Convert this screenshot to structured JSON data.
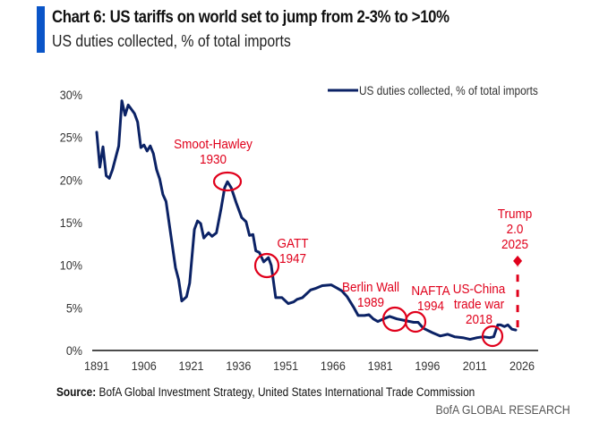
{
  "header": {
    "title": "Chart 6: US tariffs on world set to jump from 2-3% to >10%",
    "subtitle": "US duties collected, % of total imports"
  },
  "footer": {
    "source_label": "Source:",
    "source_text": " BofA Global Investment Strategy, United States International Trade Commission",
    "brand": "BofA GLOBAL RESEARCH"
  },
  "colors": {
    "accent": "#0a55c8",
    "series": "#0b2265",
    "annotation": "#e0001b",
    "axis": "#111111"
  },
  "chart_data": {
    "type": "line",
    "title": "Chart 6: US tariffs on world set to jump from 2-3% to >10%",
    "subtitle": "US duties collected, % of total imports",
    "xlabel": "",
    "ylabel": "",
    "xlim": [
      1891,
      2026
    ],
    "ylim": [
      0,
      30
    ],
    "x_ticks": [
      1891,
      1906,
      1921,
      1936,
      1951,
      1966,
      1981,
      1996,
      2011,
      2026
    ],
    "y_ticks": [
      0,
      5,
      10,
      15,
      20,
      25,
      30
    ],
    "y_tick_labels": [
      "0%",
      "5%",
      "10%",
      "15%",
      "20%",
      "25%",
      "30%"
    ],
    "grid": false,
    "legend": {
      "position": "top-right",
      "entries": [
        "US duties collected, % of total imports"
      ]
    },
    "series": [
      {
        "name": "US duties collected, % of total imports",
        "x": [
          1891,
          1892,
          1893,
          1894,
          1895,
          1896,
          1898,
          1899,
          1900,
          1901,
          1903,
          1904,
          1905,
          1906,
          1907,
          1908,
          1909,
          1910,
          1911,
          1912,
          1913,
          1916,
          1917,
          1918,
          1919.5,
          1920.5,
          1922,
          1923,
          1924,
          1925,
          1926.5,
          1927.6,
          1929,
          1930.5,
          1931.6,
          1932.5,
          1933.7,
          1935.3,
          1937,
          1938.4,
          1939.5,
          1940.6,
          1941.5,
          1942.6,
          1944,
          1945.5,
          1946.4,
          1947.8,
          1949.8,
          1951.8,
          1953.5,
          1954.6,
          1956.3,
          1958.9,
          1960.6,
          1962.6,
          1965.4,
          1967.4,
          1968.8,
          1970.5,
          1972.5,
          1974,
          1976,
          1977.4,
          1978.8,
          1980.2,
          1982,
          1984,
          1986.3,
          1989,
          1991.6,
          1993,
          1994.7,
          1997.5,
          2000,
          2002.4,
          2004.6,
          2007.2,
          2009.5,
          2011.7,
          2013.7,
          2015.7,
          2017,
          2018.3,
          2019.2,
          2020.4,
          2021.5,
          2022.8,
          2024
        ],
        "values": [
          25.6,
          21.5,
          23.9,
          20.5,
          20.2,
          21.2,
          24.0,
          29.3,
          27.6,
          28.8,
          27.8,
          26.8,
          23.8,
          24.1,
          23.4,
          24.0,
          23.1,
          21.2,
          20.1,
          18.3,
          17.5,
          9.7,
          8.3,
          5.8,
          6.3,
          7.9,
          14.2,
          15.2,
          14.9,
          13.2,
          13.8,
          13.4,
          13.8,
          16.7,
          19.1,
          19.8,
          19.1,
          17.3,
          15.6,
          15.1,
          13.5,
          13.6,
          11.7,
          11.5,
          10.4,
          10.9,
          10.0,
          6.2,
          6.2,
          5.5,
          5.7,
          6.0,
          6.2,
          7.1,
          7.3,
          7.6,
          7.7,
          7.3,
          7.0,
          6.3,
          5.1,
          4.1,
          4.1,
          4.2,
          3.7,
          3.4,
          3.7,
          4.0,
          3.7,
          3.5,
          3.3,
          3.3,
          2.6,
          2.1,
          1.7,
          1.9,
          1.6,
          1.5,
          1.3,
          1.5,
          1.6,
          1.5,
          1.6,
          3.0,
          3.0,
          2.8,
          3.0,
          2.5,
          2.4
        ]
      }
    ],
    "projection": {
      "from_x": 2024.6,
      "from_value": 2.4,
      "to_value": 10.5,
      "style": "dashed",
      "marker": "diamond"
    },
    "annotations": [
      {
        "label_lines": [
          "Smoot-Hawley",
          "1930"
        ],
        "x": 1932.5,
        "y": 19.8
      },
      {
        "label_lines": [
          "GATT",
          "1947"
        ],
        "x": 1946.4,
        "y": 10.0
      },
      {
        "label_lines": [
          "Berlin Wall",
          "1989"
        ],
        "x": 1988.5,
        "y": 3.5
      },
      {
        "label_lines": [
          "NAFTA",
          "1994"
        ],
        "x": 1994.3,
        "y": 3.2
      },
      {
        "label_lines": [
          "US-China",
          "trade war",
          "2018"
        ],
        "x": 2017.5,
        "y": 1.8
      },
      {
        "label_lines": [
          "Trump",
          "2.0",
          "2025"
        ],
        "x": 2025,
        "y": 10.5
      }
    ]
  }
}
